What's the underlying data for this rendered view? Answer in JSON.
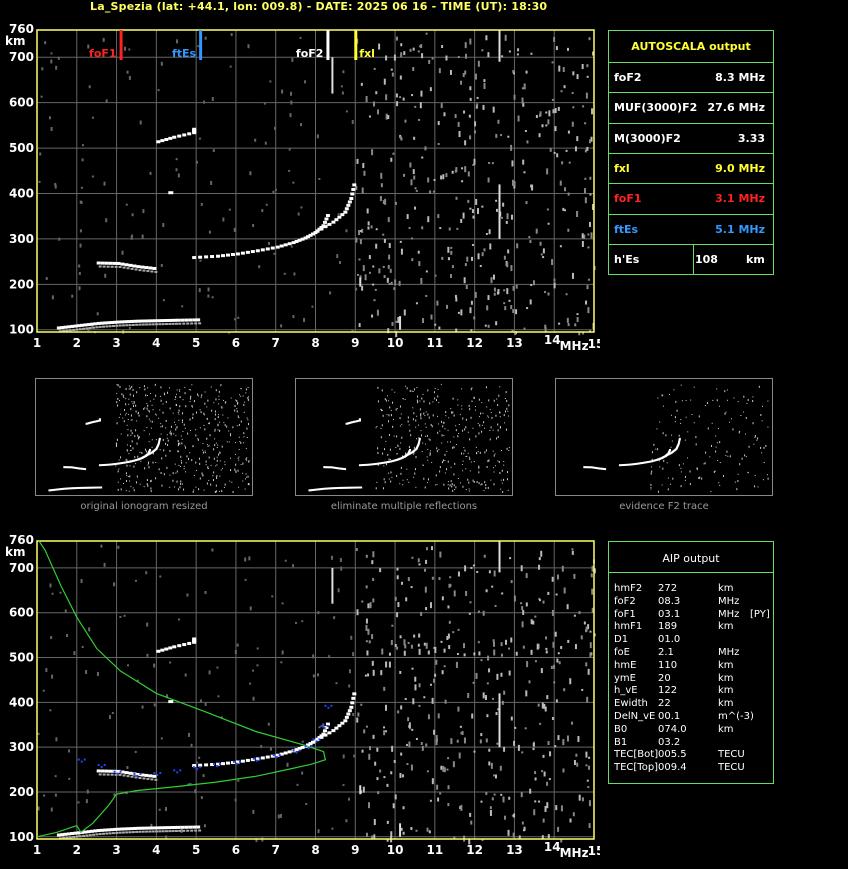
{
  "header": "La_Spezia (lat: +44.1, lon: 009.8) - DATE: 2025 06 16 - TIME (UT): 18:30",
  "chart_data": [
    {
      "type": "scatter",
      "name_printed": "",
      "x_ticks": [
        "1",
        "2",
        "3",
        "4",
        "5",
        "6",
        "7",
        "8",
        "9",
        "10",
        "11",
        "12",
        "13",
        "14",
        "15"
      ],
      "x_unit": "MHz",
      "y_ticks": [
        "100",
        "200",
        "300",
        "400",
        "500",
        "600",
        "700",
        "760"
      ],
      "y_unit": "km",
      "xlim": [
        1,
        15
      ],
      "ylim": [
        95,
        760
      ],
      "grid": true,
      "markers": [
        {
          "label": "foF1",
          "x": 3.1,
          "color": "#ff2222"
        },
        {
          "label": "ftEs",
          "x": 5.1,
          "color": "#3399ff"
        },
        {
          "label": "foF2",
          "x": 8.3,
          "color": "#ffffff"
        },
        {
          "label": "fxl",
          "x": 9.0,
          "color": "#ffff33"
        }
      ],
      "traces": {
        "F2": [
          [
            4.9,
            260
          ],
          [
            5.5,
            263
          ],
          [
            6.0,
            268
          ],
          [
            6.5,
            275
          ],
          [
            7.0,
            283
          ],
          [
            7.4,
            293
          ],
          [
            7.7,
            303
          ],
          [
            7.95,
            315
          ],
          [
            8.15,
            330
          ],
          [
            8.3,
            360
          ]
        ],
        "F2x": [
          [
            8.0,
            318
          ],
          [
            8.4,
            338
          ],
          [
            8.7,
            360
          ],
          [
            8.85,
            390
          ],
          [
            8.95,
            430
          ]
        ],
        "F1": [
          [
            2.5,
            248
          ],
          [
            3.0,
            247
          ],
          [
            3.5,
            240
          ],
          [
            4.0,
            235
          ]
        ],
        "Es": [
          [
            1.5,
            105
          ],
          [
            2.0,
            110
          ],
          [
            2.5,
            115
          ],
          [
            3.0,
            118
          ],
          [
            3.5,
            120
          ],
          [
            4.0,
            121
          ],
          [
            4.5,
            122
          ],
          [
            5.1,
            123
          ]
        ],
        "Es2": [
          [
            4.0,
            515
          ],
          [
            4.4,
            525
          ],
          [
            4.9,
            535
          ],
          [
            4.9,
            545
          ]
        ],
        "spot": [
          [
            4.3,
            405
          ]
        ]
      }
    },
    {
      "type": "line",
      "x_ticks": [
        "1",
        "2",
        "3",
        "4",
        "5",
        "6",
        "7",
        "8",
        "9",
        "10",
        "11",
        "12",
        "13",
        "14",
        "15"
      ],
      "x_unit": "MHz",
      "y_ticks": [
        "100",
        "200",
        "300",
        "400",
        "500",
        "600",
        "700",
        "760"
      ],
      "y_unit": "km",
      "xlim": [
        1,
        15
      ],
      "ylim": [
        95,
        760
      ],
      "series": [
        {
          "color": "#33cc33",
          "kind": "profile",
          "points": [
            [
              1.0,
              100
            ],
            [
              1.5,
              110
            ],
            [
              2.0,
              125
            ],
            [
              2.1,
              110
            ],
            [
              2.4,
              130
            ],
            [
              2.8,
              170
            ],
            [
              3.0,
              195
            ],
            [
              3.5,
              203
            ],
            [
              4.5,
              212
            ],
            [
              5.5,
              222
            ],
            [
              6.5,
              235
            ],
            [
              7.3,
              250
            ],
            [
              7.9,
              262
            ],
            [
              8.25,
              272
            ],
            [
              8.2,
              290
            ],
            [
              7.7,
              305
            ],
            [
              6.5,
              335
            ],
            [
              5.2,
              380
            ],
            [
              4.0,
              420
            ],
            [
              3.1,
              470
            ],
            [
              2.5,
              520
            ],
            [
              2.0,
              590
            ],
            [
              1.6,
              660
            ],
            [
              1.2,
              740
            ],
            [
              1.05,
              760
            ]
          ]
        },
        {
          "color": "#2244ff",
          "kind": "fit",
          "points": [
            [
              2.1,
              270
            ],
            [
              2.6,
              258
            ],
            [
              3.0,
              243
            ],
            [
              3.5,
              238
            ],
            [
              4.0,
              240
            ],
            [
              4.5,
              246
            ],
            [
              5.0,
              253
            ],
            [
              5.5,
              260
            ],
            [
              6.0,
              265
            ],
            [
              6.5,
              272
            ],
            [
              7.0,
              280
            ],
            [
              7.5,
              290
            ],
            [
              7.8,
              300
            ],
            [
              8.0,
              315
            ],
            [
              8.2,
              345
            ],
            [
              8.3,
              390
            ]
          ]
        }
      ]
    }
  ],
  "autoscala": {
    "title": "AUTOSCALA output",
    "rows": [
      {
        "key": "foF2",
        "value": "8.3 MHz",
        "color": "#ffffff"
      },
      {
        "key": "MUF(3000)F2",
        "value": "27.6 MHz",
        "color": "#ffffff"
      },
      {
        "key": "M(3000)F2",
        "value": "3.33",
        "color": "#ffffff"
      },
      {
        "key": "fxl",
        "value": "9.0 MHz",
        "color": "#ffff33"
      },
      {
        "key": "foF1",
        "value": "3.1 MHz",
        "color": "#ff2222"
      },
      {
        "key": "ftEs",
        "value": "5.1 MHz",
        "color": "#3399ff"
      },
      {
        "key": "h'Es",
        "value": "108",
        "unit": "km",
        "color": "#ffffff"
      }
    ]
  },
  "thumbnails": [
    {
      "caption": "original ionogram resized"
    },
    {
      "caption": "eliminate multiple reflections"
    },
    {
      "caption": "evidence F2 trace"
    }
  ],
  "aip": {
    "title": "AIP output",
    "rows": [
      {
        "k": "hmF2",
        "v": "272",
        "u": "km",
        "x": ""
      },
      {
        "k": "foF2",
        "v": "08.3",
        "u": "MHz",
        "x": ""
      },
      {
        "k": "foF1",
        "v": "03.1",
        "u": "MHz",
        "x": "[PY]"
      },
      {
        "k": "hmF1",
        "v": "189",
        "u": "km",
        "x": ""
      },
      {
        "k": "D1",
        "v": "01.0",
        "u": "",
        "x": ""
      },
      {
        "k": "foE",
        "v": "2.1",
        "u": "MHz",
        "x": ""
      },
      {
        "k": "hmE",
        "v": "110",
        "u": "km",
        "x": ""
      },
      {
        "k": "ymE",
        "v": "20",
        "u": "km",
        "x": ""
      },
      {
        "k": "h_vE",
        "v": "122",
        "u": "km",
        "x": ""
      },
      {
        "k": "Ewidth",
        "v": "22",
        "u": "km",
        "x": ""
      },
      {
        "k": "DelN_vE",
        "v": "00.1",
        "u": "m^(-3)",
        "x": ""
      },
      {
        "k": "B0",
        "v": "074.0",
        "u": "km",
        "x": ""
      },
      {
        "k": "B1",
        "v": "03.2",
        "u": "",
        "x": ""
      },
      {
        "k": "TEC[Bot]",
        "v": "005.5",
        "u": "TECU",
        "x": ""
      },
      {
        "k": "TEC[Top]",
        "v": "009.4",
        "u": "TECU",
        "x": ""
      }
    ]
  }
}
